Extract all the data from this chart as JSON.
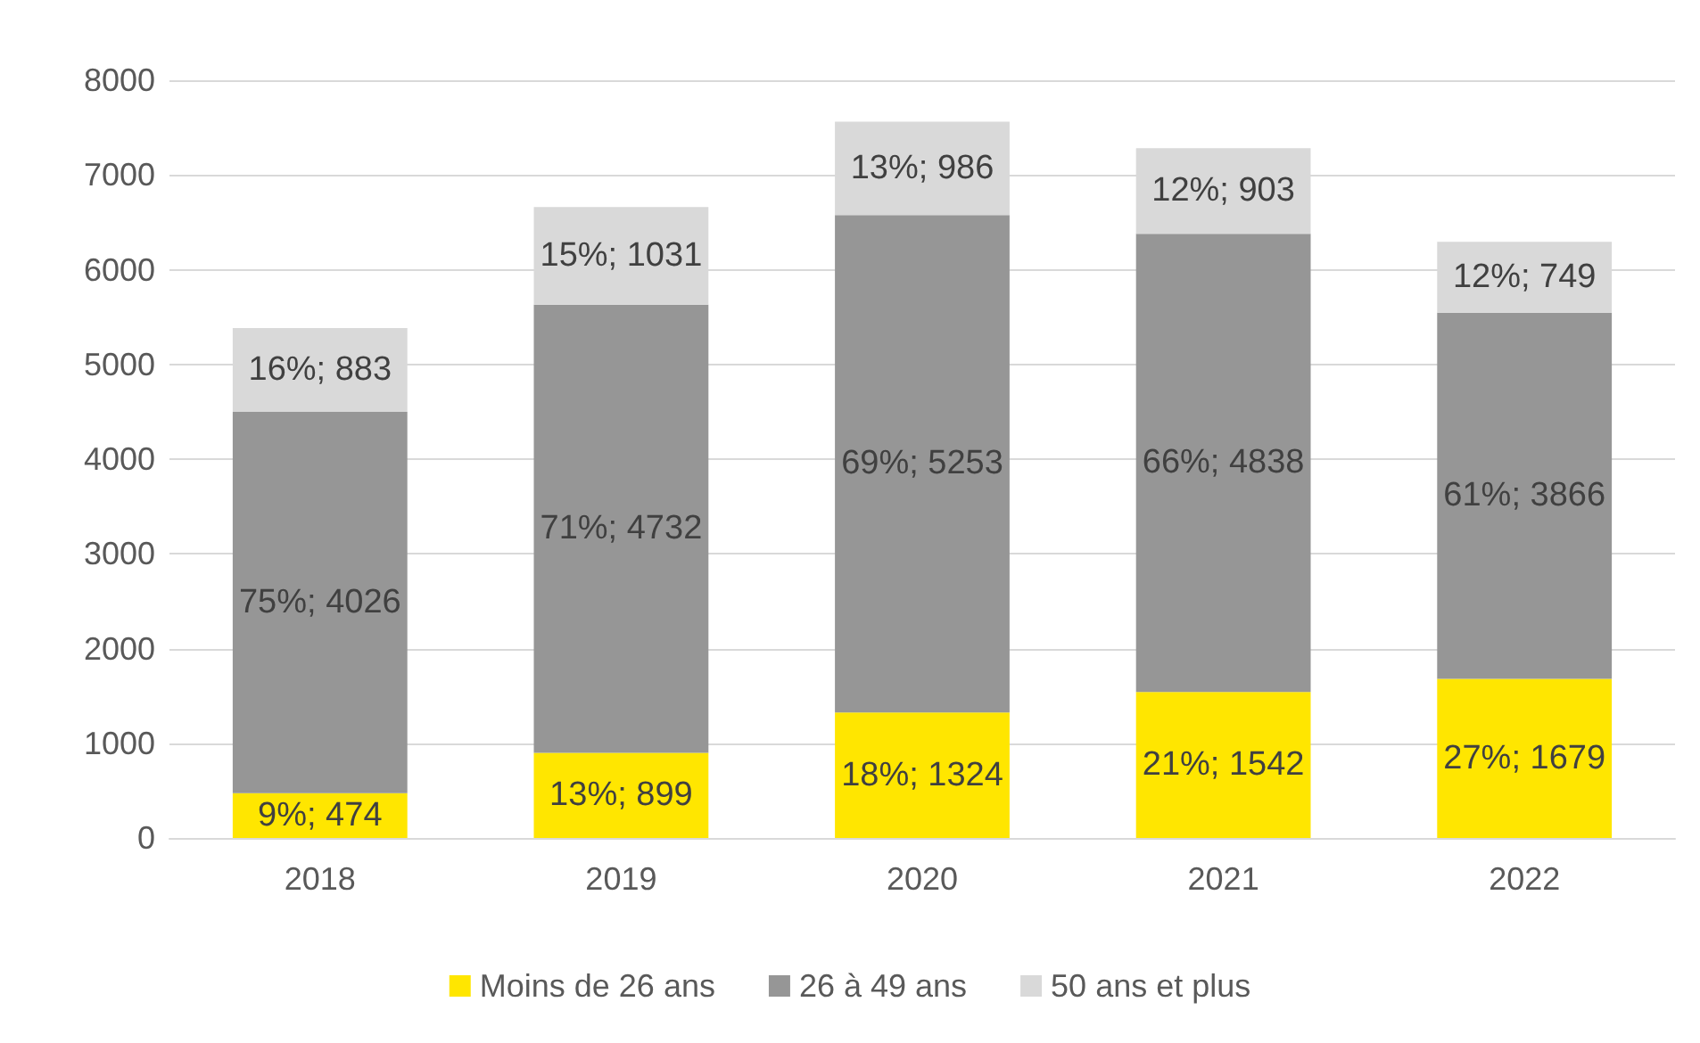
{
  "chart_data": {
    "type": "bar",
    "stacked": true,
    "categories": [
      "2018",
      "2019",
      "2020",
      "2021",
      "2022"
    ],
    "series": [
      {
        "name": "Moins de 26 ans",
        "color": "#ffe600",
        "values": [
          474,
          899,
          1324,
          1542,
          1679
        ],
        "value_labels": [
          "9%; 474",
          "13%; 899",
          "18%; 1324",
          "21%; 1542",
          "27%; 1679"
        ]
      },
      {
        "name": "26 à 49 ans",
        "color": "#969696",
        "values": [
          4026,
          4732,
          5253,
          4838,
          3866
        ],
        "value_labels": [
          "75%; 4026",
          "71%; 4732",
          "69%; 5253",
          "66%; 4838",
          "61%; 3866"
        ]
      },
      {
        "name": "50 ans et plus",
        "color": "#d9d9d9",
        "values": [
          883,
          1031,
          986,
          903,
          749
        ],
        "value_labels": [
          "16%; 883",
          "15%; 1031",
          "13%; 986",
          "12%; 903",
          "12%; 749"
        ]
      }
    ],
    "ylim": [
      0,
      8000
    ],
    "yticks": [
      0,
      1000,
      2000,
      3000,
      4000,
      5000,
      6000,
      7000,
      8000
    ],
    "grid": "y",
    "legend": "bottom"
  }
}
